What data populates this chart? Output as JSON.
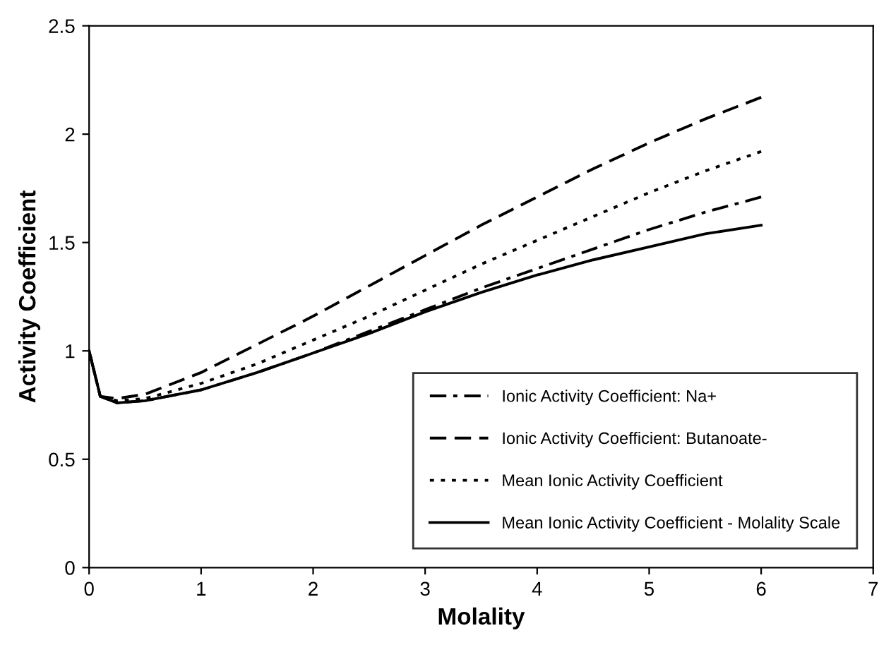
{
  "chart_data": {
    "type": "line",
    "xlabel": "Molality",
    "ylabel": "Activity Coefficient",
    "x": [
      0,
      0.1,
      0.25,
      0.5,
      1,
      1.5,
      2,
      2.5,
      3,
      3.5,
      4,
      4.5,
      5,
      5.5,
      6
    ],
    "series": [
      {
        "name": "Ionic Activity Coefficient: Na+",
        "color": "#000000",
        "line_style": "dashdot",
        "values": [
          1,
          0.79,
          0.76,
          0.77,
          0.82,
          0.9,
          0.99,
          1.09,
          1.19,
          1.29,
          1.38,
          1.47,
          1.56,
          1.64,
          1.71
        ]
      },
      {
        "name": "Ionic Activity Coefficient: Butanoate-",
        "color": "#000000",
        "line_style": "dashed",
        "values": [
          1,
          0.79,
          0.78,
          0.8,
          0.9,
          1.03,
          1.16,
          1.3,
          1.44,
          1.58,
          1.71,
          1.84,
          1.96,
          2.07,
          2.17
        ]
      },
      {
        "name": "Mean Ionic Activity Coefficient",
        "color": "#000000",
        "line_style": "dotted",
        "values": [
          1,
          0.79,
          0.77,
          0.78,
          0.85,
          0.94,
          1.05,
          1.16,
          1.28,
          1.4,
          1.51,
          1.62,
          1.73,
          1.83,
          1.92
        ]
      },
      {
        "name": "Mean Ionic Activity Coefficient - Molality Scale",
        "color": "#000000",
        "line_style": "solid",
        "values": [
          1,
          0.79,
          0.76,
          0.77,
          0.82,
          0.9,
          0.99,
          1.08,
          1.18,
          1.27,
          1.35,
          1.42,
          1.48,
          1.54,
          1.58
        ]
      }
    ],
    "xlim": [
      0,
      7
    ],
    "xticks": [
      0,
      1,
      2,
      3,
      4,
      5,
      6,
      7
    ],
    "ylim": [
      0,
      2.5
    ],
    "yticks": [
      0,
      0.5,
      1,
      1.5,
      2,
      2.5
    ],
    "grid": false,
    "legend": "bottom right",
    "marker": "none"
  }
}
